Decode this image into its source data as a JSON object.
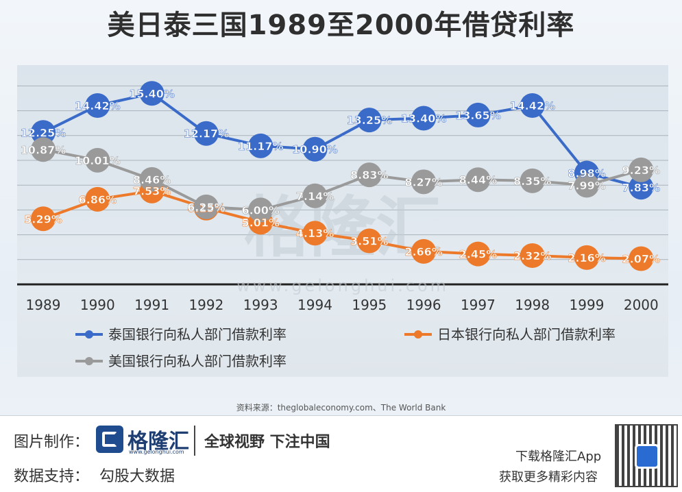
{
  "chart_data": {
    "type": "line",
    "title": "美日泰三国1989至2000年借贷利率",
    "categories": [
      "1989",
      "1990",
      "1991",
      "1992",
      "1993",
      "1994",
      "1995",
      "1996",
      "1997",
      "1998",
      "1999",
      "2000"
    ],
    "series": [
      {
        "name": "泰国银行向私人部门借款利率",
        "color": "#3a6bc9",
        "values": [
          12.25,
          14.42,
          15.4,
          12.17,
          11.17,
          10.9,
          13.25,
          13.4,
          13.65,
          14.42,
          8.98,
          7.83
        ],
        "labels": [
          "12.25%",
          "14.42%",
          "15.40%",
          "12.17%",
          "11.17%",
          "10.90%",
          "13.25%",
          "13.40%",
          "13.65%",
          "14.42%",
          "8.98%",
          "7.83%"
        ]
      },
      {
        "name": "日本银行向私人部门借款利率",
        "color": "#ec7a2a",
        "values": [
          5.29,
          6.86,
          7.53,
          6.15,
          5.01,
          4.13,
          3.51,
          2.66,
          2.45,
          2.32,
          2.16,
          2.07
        ],
        "labels": [
          "5.29%",
          "6.86%",
          "7.53%",
          "6.15%",
          "5.01%",
          "4.13%",
          "3.51%",
          "2.66%",
          "2.45%",
          "2.32%",
          "2.16%",
          "2.07%"
        ]
      },
      {
        "name": "美国银行向私人部门借款利率",
        "color": "#9a9a9a",
        "values": [
          10.87,
          10.01,
          8.46,
          6.25,
          6.0,
          7.14,
          8.83,
          8.27,
          8.44,
          8.35,
          7.99,
          9.23
        ],
        "labels": [
          "10.87%",
          "10.01%",
          "8.46%",
          "6.25%",
          "6.00%",
          "7.14%",
          "8.83%",
          "8.27%",
          "8.44%",
          "8.35%",
          "7.99%",
          "9.23%"
        ]
      }
    ],
    "ylim": [
      0,
      18
    ],
    "grid": true,
    "legend_position": "bottom",
    "xlabel": "",
    "ylabel": ""
  },
  "source": "资料来源：theglobaleconomy.com、The World Bank",
  "watermark": {
    "name": "格隆汇",
    "url": "www.gelonghui.com"
  },
  "footer": {
    "made_by_label": "图片制作：",
    "logo_name": "格隆汇",
    "logo_url": "www.gelonghui.com",
    "slogan": "全球视野 下注中国",
    "data_support_label": "数据支持：",
    "data_support_value": "勾股大数据",
    "download_text": "下载格隆汇App",
    "more_text": "获取更多精彩内容"
  }
}
